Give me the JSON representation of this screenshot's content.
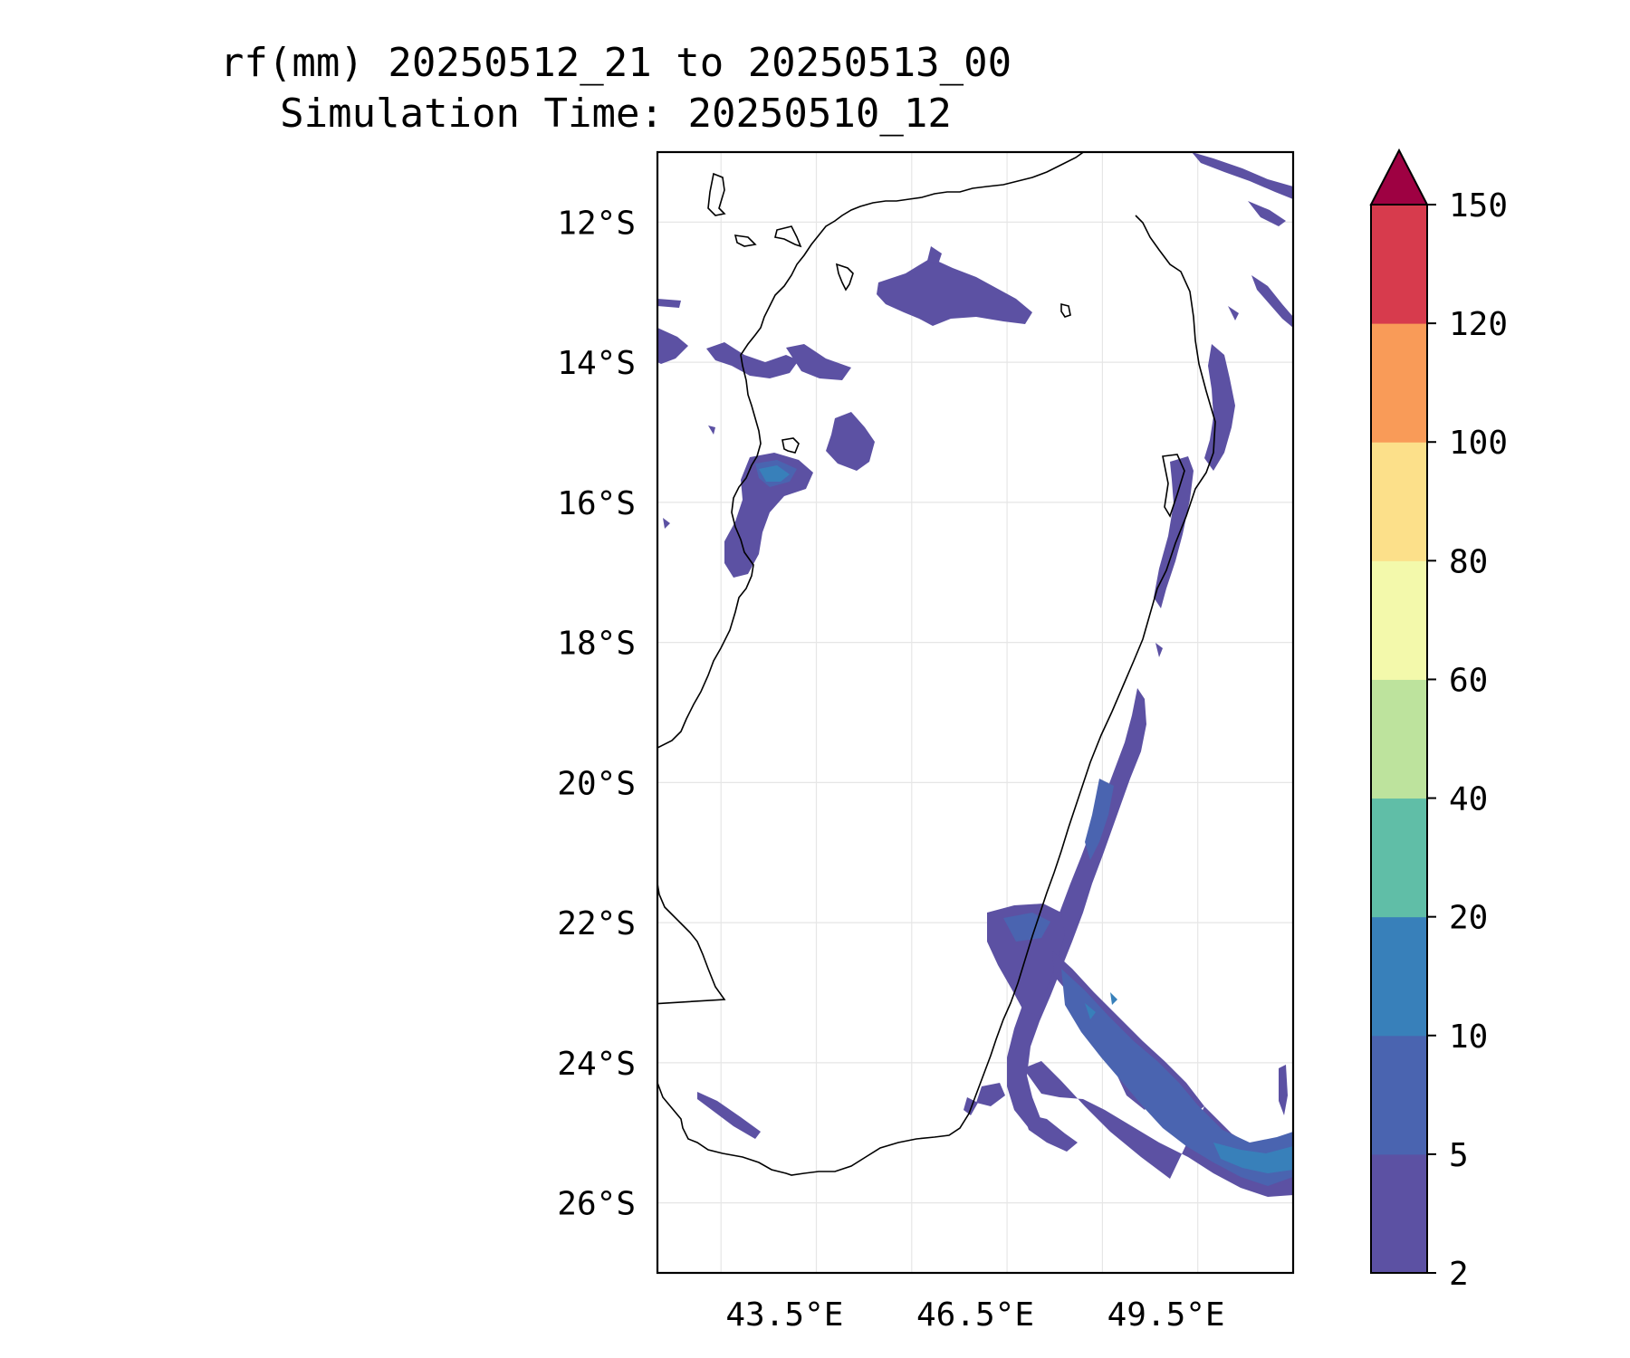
{
  "title": {
    "line1": "rf(mm) 20250512_21 to 20250513_00",
    "line2": "Simulation Time: 20250510_12"
  },
  "map": {
    "region": "Madagascar",
    "lat_ticks": [
      "12°S",
      "14°S",
      "16°S",
      "18°S",
      "20°S",
      "22°S",
      "24°S",
      "26°S"
    ],
    "lon_ticks": [
      "43.5°E",
      "46.5°E",
      "49.5°E"
    ],
    "lon_range": [
      41.5,
      51.5
    ],
    "lat_range": [
      -27,
      -11
    ],
    "gridlines": true
  },
  "colorbar": {
    "labels": [
      "2",
      "5",
      "10",
      "20",
      "40",
      "60",
      "80",
      "100",
      "120",
      "150"
    ],
    "colors": [
      "#5c51a3",
      "#4a64b0",
      "#3880ba",
      "#60bea7",
      "#bde39d",
      "#f3f9ab",
      "#fce08a",
      "#f99b58",
      "#d73b4d",
      "#9e0142"
    ],
    "extend": "max"
  },
  "colors": {
    "rain_light": "#5c51a3",
    "rain_moderate": "#4a64b0",
    "rain_heavy": "#3880ba",
    "coastline": "#000000"
  }
}
